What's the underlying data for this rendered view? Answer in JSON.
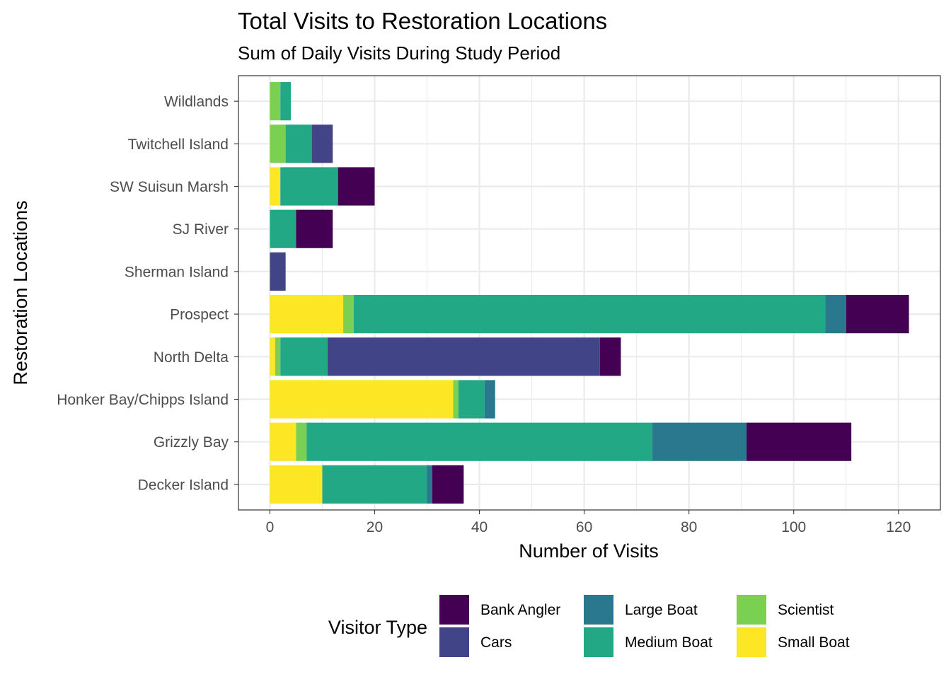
{
  "chart_data": {
    "type": "bar",
    "orientation": "horizontal",
    "stacked": true,
    "title": "Total Visits to Restoration Locations",
    "subtitle": "Sum of Daily Visits During Study Period",
    "xlabel": "Number of Visits",
    "ylabel": "Restoration Locations",
    "xlim": [
      -6,
      128
    ],
    "xticks": [
      "0",
      "20",
      "40",
      "60",
      "80",
      "100",
      "120"
    ],
    "grid": true,
    "legend_position": "bottom",
    "legend_title": "Visitor Type",
    "categories": [
      "Decker Island",
      "Grizzly Bay",
      "Honker Bay/Chipps Island",
      "North Delta",
      "Prospect",
      "Sherman Island",
      "SJ River",
      "SW Suisun Marsh",
      "Twitchell Island",
      "Wildlands"
    ],
    "series": [
      {
        "name": "Small Boat",
        "color": "#FDE725",
        "values": [
          10,
          5,
          35,
          1,
          14,
          0,
          0,
          2,
          0,
          0
        ]
      },
      {
        "name": "Scientist",
        "color": "#7AD151",
        "values": [
          0,
          2,
          1,
          1,
          2,
          0,
          0,
          0,
          3,
          2
        ]
      },
      {
        "name": "Medium Boat",
        "color": "#22A884",
        "values": [
          20,
          66,
          5,
          9,
          90,
          0,
          5,
          11,
          5,
          2
        ]
      },
      {
        "name": "Large Boat",
        "color": "#2A788E",
        "values": [
          1,
          18,
          2,
          0,
          4,
          0,
          0,
          0,
          0,
          0
        ]
      },
      {
        "name": "Cars",
        "color": "#414487",
        "values": [
          0,
          0,
          0,
          52,
          0,
          3,
          0,
          0,
          4,
          0
        ]
      },
      {
        "name": "Bank Angler",
        "color": "#440154",
        "values": [
          6,
          20,
          0,
          4,
          12,
          0,
          7,
          7,
          0,
          0
        ]
      }
    ],
    "legend_order": [
      "Bank Angler",
      "Cars",
      "Large Boat",
      "Medium Boat",
      "Scientist",
      "Small Boat"
    ]
  }
}
